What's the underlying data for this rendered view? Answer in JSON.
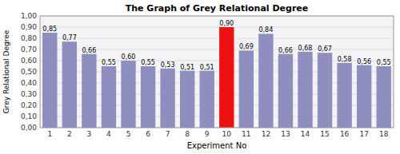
{
  "chart_data": {
    "type": "bar",
    "title": "The Graph of Grey Relational Degree",
    "xlabel": "Experiment No",
    "ylabel": "Grey Relational Degree",
    "categories": [
      1,
      2,
      3,
      4,
      5,
      6,
      7,
      8,
      9,
      10,
      11,
      12,
      13,
      14,
      15,
      16,
      17,
      18
    ],
    "values": [
      0.85,
      0.77,
      0.66,
      0.55,
      0.6,
      0.55,
      0.53,
      0.51,
      0.51,
      0.9,
      0.69,
      0.84,
      0.66,
      0.68,
      0.67,
      0.58,
      0.56,
      0.55
    ],
    "value_labels": [
      "0,85",
      "0,77",
      "0,66",
      "0,55",
      "0,60",
      "0,55",
      "0,53",
      "0,51",
      "0,51",
      "0,90",
      "0,69",
      "0,84",
      "0,66",
      "0,68",
      "0,67",
      "0,58",
      "0,56",
      "0,55"
    ],
    "colors": [
      "#8F8FBF",
      "#8F8FBF",
      "#8F8FBF",
      "#8F8FBF",
      "#8F8FBF",
      "#8F8FBF",
      "#8F8FBF",
      "#8F8FBF",
      "#8F8FBF",
      "#EE1111",
      "#8F8FBF",
      "#8F8FBF",
      "#8F8FBF",
      "#8F8FBF",
      "#8F8FBF",
      "#8F8FBF",
      "#8F8FBF",
      "#8F8FBF"
    ],
    "ylim": [
      0.0,
      1.0
    ],
    "yticks": [
      {
        "value": 0.0,
        "label": "0,00"
      },
      {
        "value": 0.1,
        "label": "0,10"
      },
      {
        "value": 0.2,
        "label": "0,20"
      },
      {
        "value": 0.3,
        "label": "0,30"
      },
      {
        "value": 0.4,
        "label": "0,40"
      },
      {
        "value": 0.5,
        "label": "0,50"
      },
      {
        "value": 0.6,
        "label": "0,60"
      },
      {
        "value": 0.7,
        "label": "0,70"
      },
      {
        "value": 0.8,
        "label": "0,80"
      },
      {
        "value": 0.9,
        "label": "0,90"
      },
      {
        "value": 1.0,
        "label": "1,00"
      }
    ],
    "grid": true,
    "data_labels": true
  }
}
